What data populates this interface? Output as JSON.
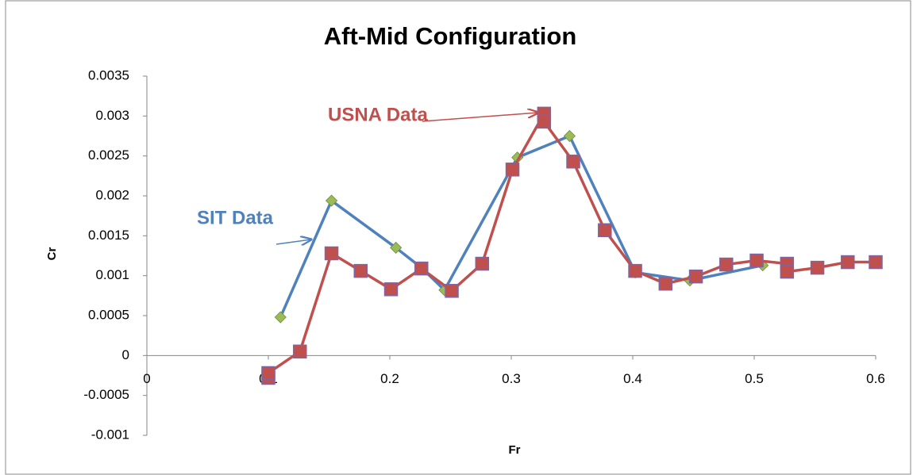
{
  "chart_data": {
    "type": "scatter",
    "title": "Aft-Mid Configuration",
    "x_label": "Fr",
    "y_label": "Cr",
    "xlim": [
      0,
      0.6
    ],
    "xticks": [
      0,
      0.1,
      0.2,
      0.3,
      0.4,
      0.5,
      0.6
    ],
    "ylim": [
      -0.001,
      0.0035
    ],
    "yticks": [
      -0.001,
      -0.0005,
      0,
      0.0005,
      0.001,
      0.0015,
      0.002,
      0.0025,
      0.003,
      0.0035
    ],
    "grid": false,
    "series": [
      {
        "name": "SIT Data",
        "color": "#4f81bd",
        "marker": "diamond",
        "marker_color": "#9bbb59",
        "x": [
          0.11,
          0.152,
          0.205,
          0.226,
          0.245,
          0.305,
          0.348,
          0.402,
          0.447,
          0.507
        ],
        "values": [
          0.00048,
          0.00194,
          0.00135,
          0.0011,
          0.00082,
          0.00248,
          0.00275,
          0.00104,
          0.00094,
          0.00113
        ]
      },
      {
        "name": "USNA Data",
        "color": "#c0504d",
        "marker": "square",
        "marker_color": "#c0504d",
        "x": [
          0.1,
          0.1,
          0.126,
          0.152,
          0.176,
          0.201,
          0.226,
          0.251,
          0.276,
          0.301,
          0.327,
          0.327,
          0.351,
          0.377,
          0.402,
          0.427,
          0.452,
          0.477,
          0.502,
          0.527,
          0.527,
          0.552,
          0.577,
          0.6
        ],
        "values": [
          -0.00028,
          -0.00022,
          5e-05,
          0.00128,
          0.00106,
          0.00083,
          0.00109,
          0.00081,
          0.00115,
          0.00233,
          0.00303,
          0.00293,
          0.00243,
          0.00157,
          0.00106,
          0.0009,
          0.00099,
          0.00114,
          0.00119,
          0.00115,
          0.00105,
          0.0011,
          0.00117,
          0.00117
        ]
      }
    ]
  }
}
